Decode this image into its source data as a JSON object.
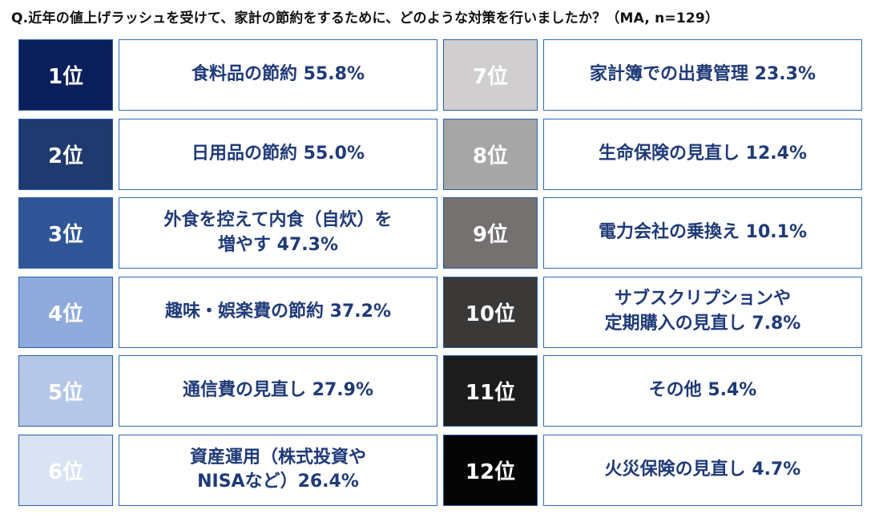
{
  "question": "Q.近年の値上げラッシュを受けて、家計の節約をするために、どのような対策を行いましたか？（MA, n=129）",
  "chart_data": {
    "type": "table",
    "rows": [
      {
        "rank": "1位",
        "label": "食料品の節約 55.8%",
        "item": "食料品の節約",
        "value": 55.8,
        "badge_bg": "#0b1f5c",
        "badge_fg": "#ffffff"
      },
      {
        "rank": "2位",
        "label": "日用品の節約 55.0%",
        "item": "日用品の節約",
        "value": 55.0,
        "badge_bg": "#1f3a6e",
        "badge_fg": "#ffffff"
      },
      {
        "rank": "3位",
        "label": "外食を控えて内食（自炊）を\n増やす 47.3%",
        "item": "外食を控えて内食（自炊）を増やす",
        "value": 47.3,
        "badge_bg": "#2f5597",
        "badge_fg": "#ffffff"
      },
      {
        "rank": "4位",
        "label": "趣味・娯楽費の節約 37.2%",
        "item": "趣味・娯楽費の節約",
        "value": 37.2,
        "badge_bg": "#8faadc",
        "badge_fg": "#ffffff"
      },
      {
        "rank": "5位",
        "label": "通信費の見直し 27.9%",
        "item": "通信費の見直し",
        "value": 27.9,
        "badge_bg": "#b4c7e7",
        "badge_fg": "#ffffff"
      },
      {
        "rank": "6位",
        "label": "資産運用（株式投資や\nNISAなど）26.4%",
        "item": "資産運用（株式投資やNISAなど）",
        "value": 26.4,
        "badge_bg": "#dae3f3",
        "badge_fg": "#ffffff"
      },
      {
        "rank": "7位",
        "label": "家計簿での出費管理 23.3%",
        "item": "家計簿での出費管理",
        "value": 23.3,
        "badge_bg": "#d0cece",
        "badge_fg": "#ffffff"
      },
      {
        "rank": "8位",
        "label": "生命保険の見直し 12.4%",
        "item": "生命保険の見直し",
        "value": 12.4,
        "badge_bg": "#a6a6a6",
        "badge_fg": "#ffffff"
      },
      {
        "rank": "9位",
        "label": "電力会社の乗換え 10.1%",
        "item": "電力会社の乗換え",
        "value": 10.1,
        "badge_bg": "#757171",
        "badge_fg": "#ffffff"
      },
      {
        "rank": "10位",
        "label": "サブスクリプションや\n定期購入の見直し 7.8%",
        "item": "サブスクリプションや定期購入の見直し",
        "value": 7.8,
        "badge_bg": "#3b3838",
        "badge_fg": "#ffffff"
      },
      {
        "rank": "11位",
        "label": "その他 5.4%",
        "item": "その他",
        "value": 5.4,
        "badge_bg": "#1c1c1c",
        "badge_fg": "#ffffff"
      },
      {
        "rank": "12位",
        "label": "火災保険の見直し 4.7%",
        "item": "火災保険の見直し",
        "value": 4.7,
        "badge_bg": "#050505",
        "badge_fg": "#ffffff"
      }
    ]
  }
}
